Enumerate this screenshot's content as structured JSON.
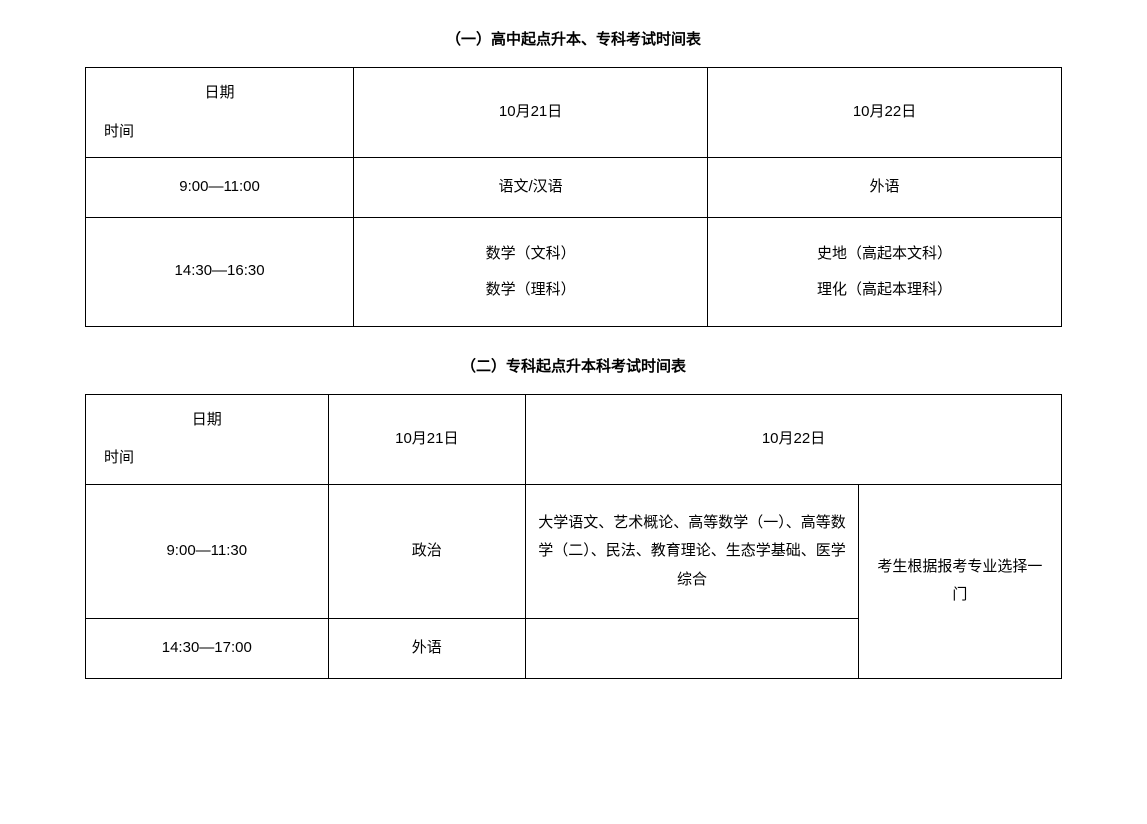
{
  "table1": {
    "title": "（一）高中起点升本、专科考试时间表",
    "header": {
      "date_label": "日期",
      "time_label": "时间",
      "col2": "10月21日",
      "col3": "10月22日"
    },
    "row1": {
      "time": "9:00—11:00",
      "col2": "语文/汉语",
      "col3": "外语"
    },
    "row2": {
      "time": "14:30—16:30",
      "col2_line1": "数学（文科）",
      "col2_line2": "数学（理科）",
      "col3_line1": "史地（高起本文科）",
      "col3_line2": "理化（高起本理科）"
    }
  },
  "table2": {
    "title": "（二）专科起点升本科考试时间表",
    "header": {
      "date_label": "日期",
      "time_label": "时间",
      "col2": "10月21日",
      "col3": "10月22日"
    },
    "row1": {
      "time": "9:00—11:30",
      "col2": "政治",
      "col3": "大学语文、艺术概论、高等数学（一）、高等数学（二）、民法、教育理论、生态学基础、医学综合",
      "col4": "考生根据报考专业选择一门"
    },
    "row2": {
      "time": "14:30—17:00",
      "col2": "外语",
      "col3": ""
    }
  }
}
